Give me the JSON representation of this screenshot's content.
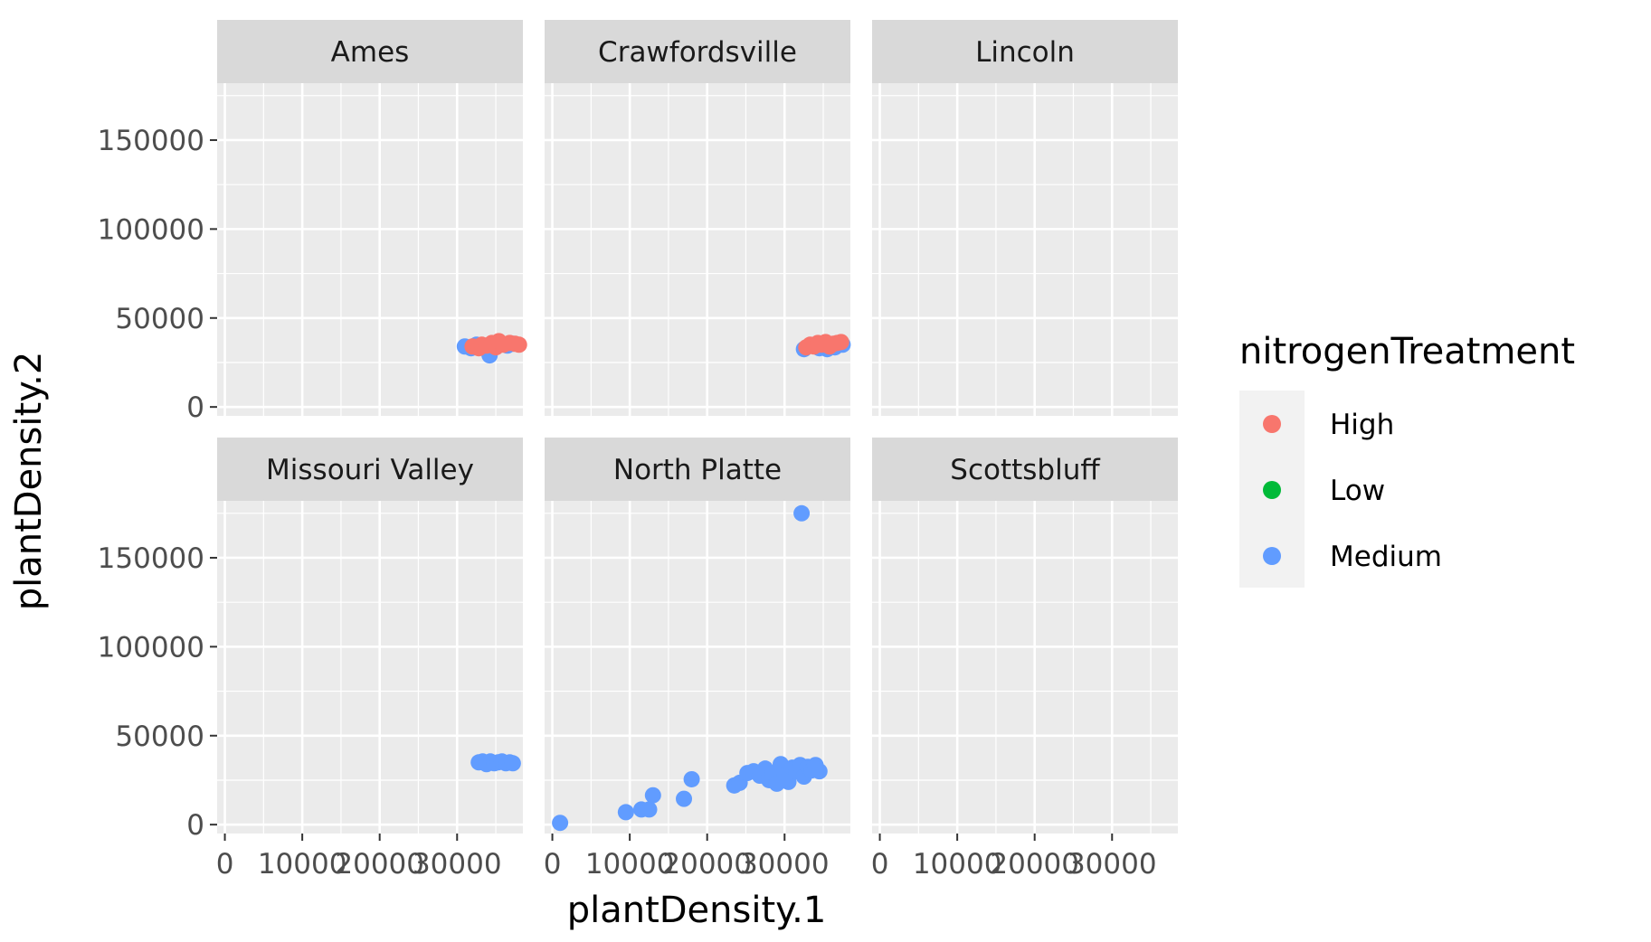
{
  "chart_data": {
    "type": "scatter",
    "xlabel": "plantDensity.1",
    "ylabel": "plantDensity.2",
    "xlim": [
      -1000,
      38500
    ],
    "ylim": [
      -5000,
      182000
    ],
    "x_ticks": [
      0,
      10000,
      20000,
      30000
    ],
    "x_tick_labels": [
      "0",
      "10000",
      "20000",
      "30000"
    ],
    "y_ticks": [
      0,
      50000,
      100000,
      150000
    ],
    "y_tick_labels": [
      "0",
      "50000",
      "100000",
      "150000"
    ],
    "grid": true,
    "facet_layout": {
      "rows": 2,
      "cols": 3
    },
    "legend": {
      "title": "nitrogenTreatment",
      "position": "right",
      "entries": [
        {
          "label": "High",
          "color": "#F8766D"
        },
        {
          "label": "Low",
          "color": "#00BA38"
        },
        {
          "label": "Medium",
          "color": "#619CFF"
        }
      ]
    },
    "colors": {
      "High": "#F8766D",
      "Low": "#00BA38",
      "Medium": "#619CFF"
    },
    "facets": [
      {
        "label": "Ames",
        "points": [
          {
            "x": 31000,
            "y": 34000,
            "group": "Medium"
          },
          {
            "x": 31800,
            "y": 33000,
            "group": "Medium"
          },
          {
            "x": 32500,
            "y": 35000,
            "group": "Medium"
          },
          {
            "x": 33500,
            "y": 33500,
            "group": "Medium"
          },
          {
            "x": 34000,
            "y": 32500,
            "group": "Medium"
          },
          {
            "x": 34200,
            "y": 29000,
            "group": "Medium"
          },
          {
            "x": 35000,
            "y": 34000,
            "group": "Medium"
          },
          {
            "x": 36500,
            "y": 34500,
            "group": "Medium"
          },
          {
            "x": 37200,
            "y": 35500,
            "group": "Medium"
          },
          {
            "x": 32000,
            "y": 34000,
            "group": "High"
          },
          {
            "x": 32800,
            "y": 33000,
            "group": "High"
          },
          {
            "x": 33200,
            "y": 35000,
            "group": "High"
          },
          {
            "x": 33800,
            "y": 34500,
            "group": "High"
          },
          {
            "x": 34500,
            "y": 36000,
            "group": "High"
          },
          {
            "x": 35000,
            "y": 33500,
            "group": "High"
          },
          {
            "x": 35400,
            "y": 37000,
            "group": "High"
          },
          {
            "x": 36000,
            "y": 35000,
            "group": "High"
          },
          {
            "x": 36800,
            "y": 36000,
            "group": "High"
          },
          {
            "x": 37500,
            "y": 35500,
            "group": "High"
          },
          {
            "x": 38000,
            "y": 35000,
            "group": "High"
          }
        ]
      },
      {
        "label": "Crawfordsville",
        "points": [
          {
            "x": 32500,
            "y": 32500,
            "group": "Medium"
          },
          {
            "x": 33500,
            "y": 34500,
            "group": "Medium"
          },
          {
            "x": 34500,
            "y": 33000,
            "group": "Medium"
          },
          {
            "x": 35500,
            "y": 32500,
            "group": "Medium"
          },
          {
            "x": 36500,
            "y": 33500,
            "group": "Medium"
          },
          {
            "x": 37500,
            "y": 35000,
            "group": "Medium"
          },
          {
            "x": 32800,
            "y": 33500,
            "group": "High"
          },
          {
            "x": 33300,
            "y": 35000,
            "group": "High"
          },
          {
            "x": 33800,
            "y": 34000,
            "group": "High"
          },
          {
            "x": 34300,
            "y": 36000,
            "group": "High"
          },
          {
            "x": 34800,
            "y": 35000,
            "group": "High"
          },
          {
            "x": 35300,
            "y": 36500,
            "group": "High"
          },
          {
            "x": 35800,
            "y": 34000,
            "group": "High"
          },
          {
            "x": 36300,
            "y": 35500,
            "group": "High"
          },
          {
            "x": 36800,
            "y": 36000,
            "group": "High"
          },
          {
            "x": 37300,
            "y": 36500,
            "group": "High"
          }
        ]
      },
      {
        "label": "Lincoln",
        "points": []
      },
      {
        "label": "Missouri Valley",
        "points": [
          {
            "x": 32800,
            "y": 35000,
            "group": "Medium"
          },
          {
            "x": 33300,
            "y": 35500,
            "group": "Medium"
          },
          {
            "x": 33800,
            "y": 34000,
            "group": "Medium"
          },
          {
            "x": 34300,
            "y": 35500,
            "group": "Medium"
          },
          {
            "x": 34800,
            "y": 34500,
            "group": "Medium"
          },
          {
            "x": 35300,
            "y": 35000,
            "group": "Medium"
          },
          {
            "x": 35800,
            "y": 35500,
            "group": "Medium"
          },
          {
            "x": 36300,
            "y": 34500,
            "group": "Medium"
          },
          {
            "x": 36800,
            "y": 35000,
            "group": "Medium"
          },
          {
            "x": 37200,
            "y": 34500,
            "group": "Medium"
          }
        ]
      },
      {
        "label": "North Platte",
        "points": [
          {
            "x": 1000,
            "y": 1000,
            "group": "Medium"
          },
          {
            "x": 9500,
            "y": 7000,
            "group": "Medium"
          },
          {
            "x": 11500,
            "y": 8500,
            "group": "Medium"
          },
          {
            "x": 12500,
            "y": 8500,
            "group": "Medium"
          },
          {
            "x": 13000,
            "y": 16500,
            "group": "Medium"
          },
          {
            "x": 17000,
            "y": 14500,
            "group": "Medium"
          },
          {
            "x": 18000,
            "y": 25500,
            "group": "Medium"
          },
          {
            "x": 23500,
            "y": 22000,
            "group": "Medium"
          },
          {
            "x": 24200,
            "y": 23500,
            "group": "Medium"
          },
          {
            "x": 25200,
            "y": 29000,
            "group": "Medium"
          },
          {
            "x": 26000,
            "y": 30000,
            "group": "Medium"
          },
          {
            "x": 26800,
            "y": 27500,
            "group": "Medium"
          },
          {
            "x": 27500,
            "y": 31500,
            "group": "Medium"
          },
          {
            "x": 28000,
            "y": 25000,
            "group": "Medium"
          },
          {
            "x": 28500,
            "y": 29000,
            "group": "Medium"
          },
          {
            "x": 29000,
            "y": 23000,
            "group": "Medium"
          },
          {
            "x": 29500,
            "y": 34000,
            "group": "Medium"
          },
          {
            "x": 30000,
            "y": 28000,
            "group": "Medium"
          },
          {
            "x": 30500,
            "y": 24000,
            "group": "Medium"
          },
          {
            "x": 31000,
            "y": 32000,
            "group": "Medium"
          },
          {
            "x": 31500,
            "y": 30000,
            "group": "Medium"
          },
          {
            "x": 32000,
            "y": 33500,
            "group": "Medium"
          },
          {
            "x": 32200,
            "y": 175000,
            "group": "Medium"
          },
          {
            "x": 32500,
            "y": 27000,
            "group": "Medium"
          },
          {
            "x": 33000,
            "y": 32500,
            "group": "Medium"
          },
          {
            "x": 33500,
            "y": 30500,
            "group": "Medium"
          },
          {
            "x": 34000,
            "y": 33500,
            "group": "Medium"
          },
          {
            "x": 34500,
            "y": 30000,
            "group": "Medium"
          }
        ]
      },
      {
        "label": "Scottsbluff",
        "points": []
      }
    ]
  }
}
